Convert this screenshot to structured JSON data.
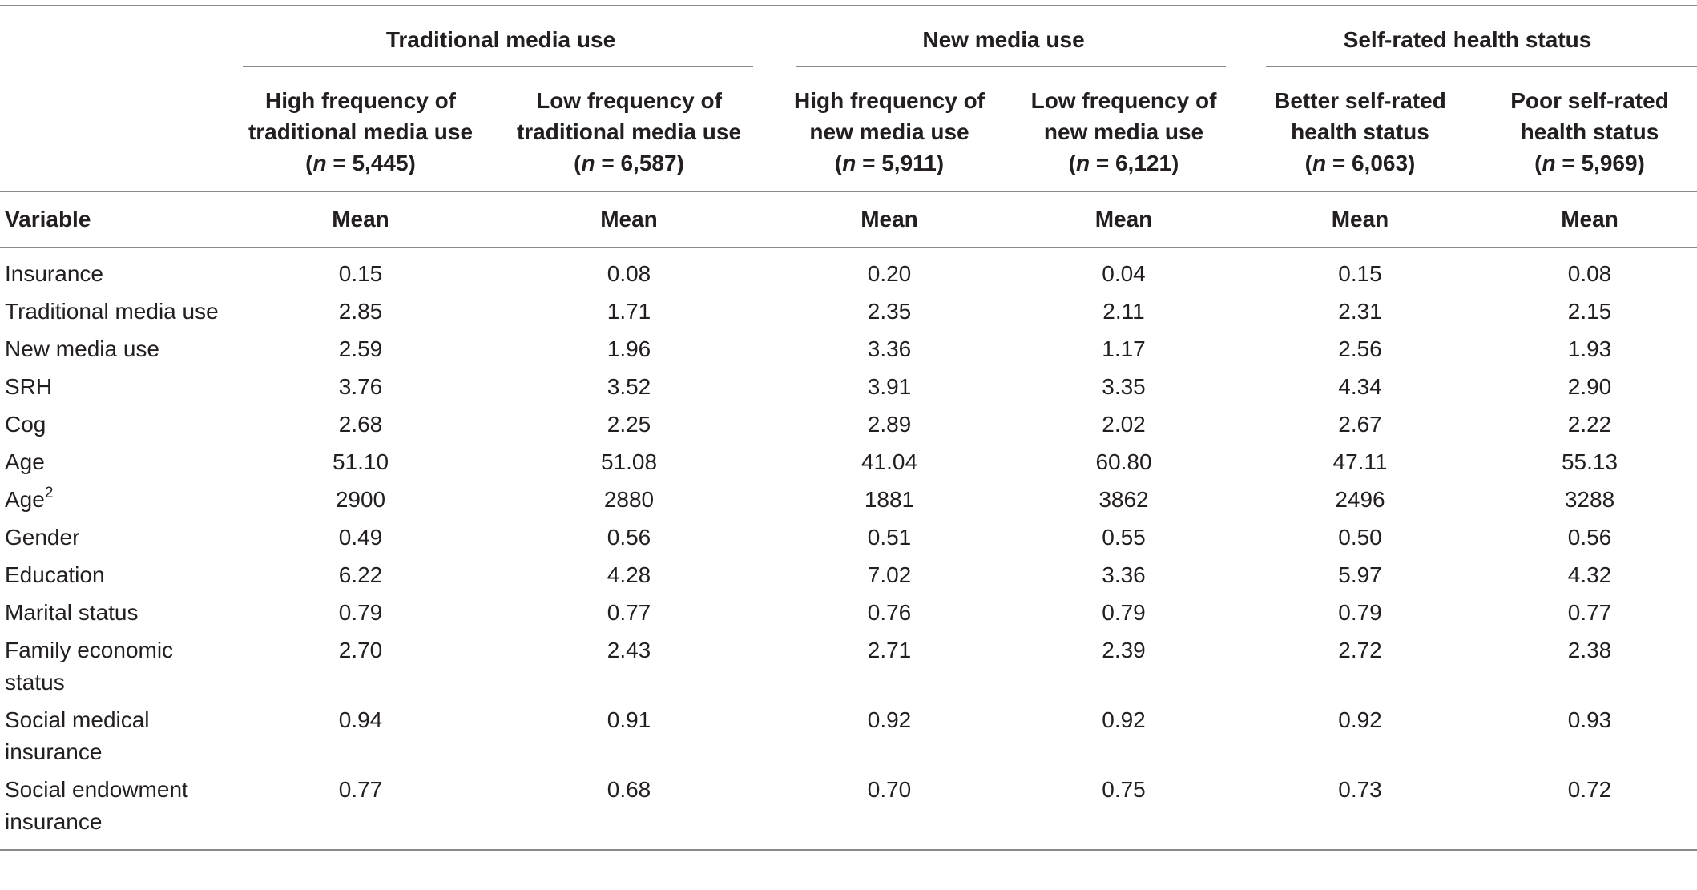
{
  "groups": {
    "traditional": "Traditional media use",
    "new_media": "New media use",
    "srh": "Self-rated health status"
  },
  "columns": [
    {
      "line1": "High frequency of",
      "line2": "traditional media use",
      "n_label": "n",
      "n_value": " = 5,445)"
    },
    {
      "line1": "Low frequency of",
      "line2": "traditional media use",
      "n_label": "n",
      "n_value": " = 6,587)"
    },
    {
      "line1": "High frequency of",
      "line2": "new media use",
      "n_label": "n",
      "n_value": " = 5,911)"
    },
    {
      "line1": "Low frequency of",
      "line2": "new media use",
      "n_label": "n",
      "n_value": " = 6,121)"
    },
    {
      "line1": "Better self-rated",
      "line2": "health status",
      "n_label": "n",
      "n_value": " = 6,063)"
    },
    {
      "line1": "Poor self-rated",
      "line2": "health status",
      "n_label": "n",
      "n_value": " = 5,969)"
    }
  ],
  "header": {
    "variable": "Variable",
    "mean": "Mean"
  },
  "rows": [
    {
      "label": "Insurance",
      "values": [
        "0.15",
        "0.08",
        "0.20",
        "0.04",
        "0.15",
        "0.08"
      ]
    },
    {
      "label": "Traditional media use",
      "values": [
        "2.85",
        "1.71",
        "2.35",
        "2.11",
        "2.31",
        "2.15"
      ]
    },
    {
      "label": "New media use",
      "values": [
        "2.59",
        "1.96",
        "3.36",
        "1.17",
        "2.56",
        "1.93"
      ]
    },
    {
      "label": "SRH",
      "values": [
        "3.76",
        "3.52",
        "3.91",
        "3.35",
        "4.34",
        "2.90"
      ]
    },
    {
      "label": "Cog",
      "values": [
        "2.68",
        "2.25",
        "2.89",
        "2.02",
        "2.67",
        "2.22"
      ]
    },
    {
      "label": "Age",
      "values": [
        "51.10",
        "51.08",
        "41.04",
        "60.80",
        "47.11",
        "55.13"
      ]
    },
    {
      "label": "Age",
      "sup": "2",
      "values": [
        "2900",
        "2880",
        "1881",
        "3862",
        "2496",
        "3288"
      ]
    },
    {
      "label": "Gender",
      "values": [
        "0.49",
        "0.56",
        "0.51",
        "0.55",
        "0.50",
        "0.56"
      ]
    },
    {
      "label": "Education",
      "values": [
        "6.22",
        "4.28",
        "7.02",
        "3.36",
        "5.97",
        "4.32"
      ]
    },
    {
      "label": "Marital status",
      "values": [
        "0.79",
        "0.77",
        "0.76",
        "0.79",
        "0.79",
        "0.77"
      ]
    },
    {
      "label": "Family economic status",
      "values": [
        "2.70",
        "2.43",
        "2.71",
        "2.39",
        "2.72",
        "2.38"
      ]
    },
    {
      "label": "Social medical insurance",
      "values": [
        "0.94",
        "0.91",
        "0.92",
        "0.92",
        "0.92",
        "0.93"
      ]
    },
    {
      "label": "Social endowment insurance",
      "values": [
        "0.77",
        "0.68",
        "0.70",
        "0.75",
        "0.73",
        "0.72"
      ]
    }
  ]
}
